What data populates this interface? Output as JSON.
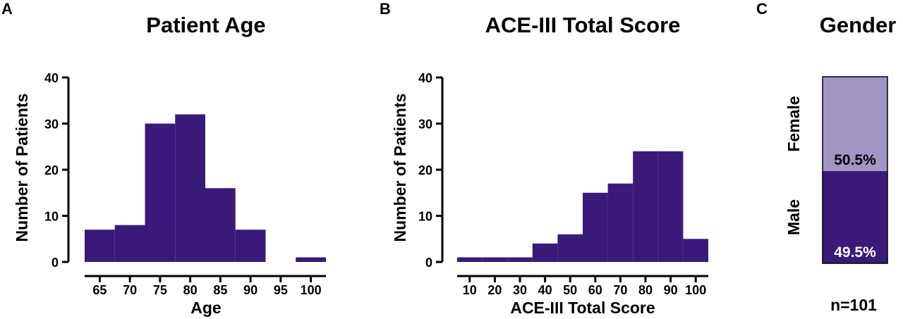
{
  "colors": {
    "bar": "#3a1a78",
    "female": "#a195c6",
    "male": "#3a1a78",
    "axis": "#000000"
  },
  "chart_data": [
    {
      "panel": "A",
      "type": "bar",
      "title": "Patient Age",
      "xlabel": "Age",
      "ylabel": "Number of Patients",
      "xlim": [
        62.5,
        102.5
      ],
      "ylim": [
        0,
        40
      ],
      "yticks": [
        0,
        10,
        20,
        30,
        40
      ],
      "xticks": [
        65,
        70,
        75,
        80,
        85,
        90,
        95,
        100
      ],
      "bin_width": 5,
      "bins": [
        {
          "center": 65,
          "count": 7
        },
        {
          "center": 70,
          "count": 8
        },
        {
          "center": 75,
          "count": 30
        },
        {
          "center": 80,
          "count": 32
        },
        {
          "center": 85,
          "count": 16
        },
        {
          "center": 90,
          "count": 7
        },
        {
          "center": 95,
          "count": 0
        },
        {
          "center": 100,
          "count": 1
        }
      ]
    },
    {
      "panel": "B",
      "type": "bar",
      "title": "ACE-III Total Score",
      "xlabel": "ACE-III Total Score",
      "ylabel": "Number of Patients",
      "xlim": [
        5,
        105
      ],
      "ylim": [
        0,
        40
      ],
      "yticks": [
        0,
        10,
        20,
        30,
        40
      ],
      "xticks": [
        10,
        20,
        30,
        40,
        50,
        60,
        70,
        80,
        90,
        100
      ],
      "bin_width": 10,
      "bins": [
        {
          "center": 10,
          "count": 1
        },
        {
          "center": 20,
          "count": 1
        },
        {
          "center": 30,
          "count": 1
        },
        {
          "center": 40,
          "count": 4
        },
        {
          "center": 50,
          "count": 6
        },
        {
          "center": 60,
          "count": 15
        },
        {
          "center": 70,
          "count": 17
        },
        {
          "center": 80,
          "count": 24
        },
        {
          "center": 90,
          "count": 24
        },
        {
          "center": 100,
          "count": 5
        }
      ]
    },
    {
      "panel": "C",
      "type": "bar",
      "subtype": "stacked-percent",
      "title": "Gender",
      "segments": [
        {
          "name": "Male",
          "value": 49.5,
          "label": "49.5%"
        },
        {
          "name": "Female",
          "value": 50.5,
          "label": "50.5%"
        }
      ],
      "note": "n=101"
    }
  ]
}
